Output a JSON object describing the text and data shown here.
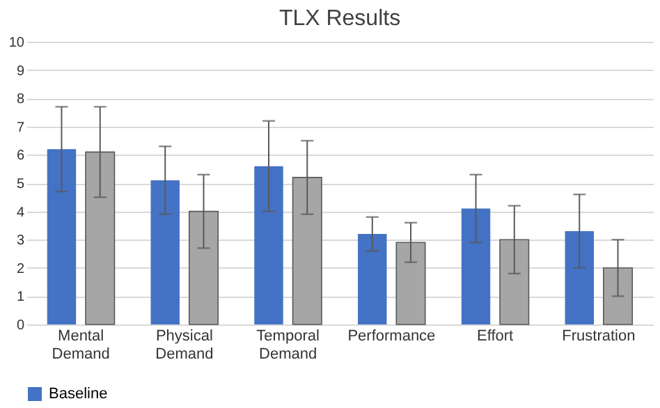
{
  "chart_data": {
    "type": "bar",
    "title": "TLX Results",
    "categories": [
      "Mental Demand",
      "Physical Demand",
      "Temporal Demand",
      "Performance",
      "Effort",
      "Frustration"
    ],
    "series": [
      {
        "name": "Baseline",
        "color": "#4472c4",
        "values": [
          6.2,
          5.1,
          5.6,
          3.2,
          4.1,
          3.3
        ],
        "errors": [
          1.5,
          1.2,
          1.6,
          0.6,
          1.2,
          1.3
        ]
      },
      {
        "color": "#a6a6a6",
        "values": [
          6.1,
          4.0,
          5.2,
          2.9,
          3.0,
          2.0
        ],
        "errors": [
          1.6,
          1.3,
          1.3,
          0.7,
          1.2,
          1.0
        ]
      }
    ],
    "ylim": [
      0,
      10
    ],
    "yticks": [
      0,
      1,
      2,
      3,
      4,
      5,
      6,
      7,
      8,
      9,
      10
    ],
    "grid": "y",
    "legend": "bottom"
  }
}
